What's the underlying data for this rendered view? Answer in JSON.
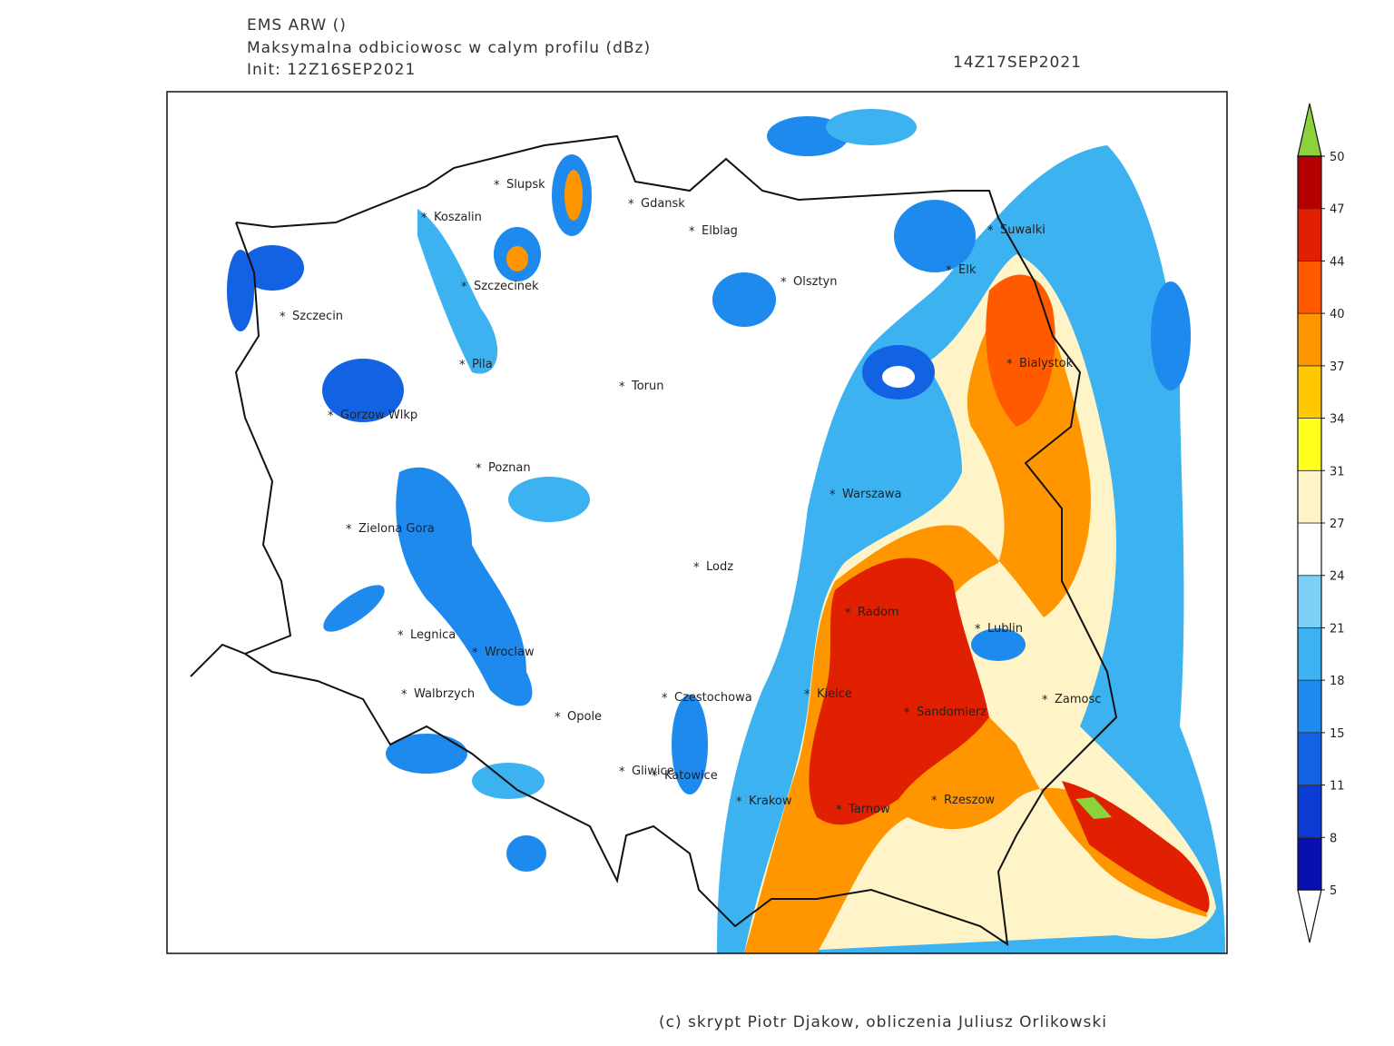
{
  "header": {
    "model": "EMS ARW ()",
    "field": "Maksymalna odbiciowosc w calym profilu (dBz)",
    "init": "Init: 12Z16SEP2021",
    "valid": "14Z17SEP2021"
  },
  "cities": [
    "Slupsk",
    "Koszalin",
    "Gdansk",
    "Elblag",
    "Suwalki",
    "Elk",
    "Olsztyn",
    "Szczecinek",
    "Szczecin",
    "Bialystok",
    "Pila",
    "Torun",
    "Gorzow Wlkp",
    "Poznan",
    "Warszawa",
    "Zielona Gora",
    "Lodz",
    "Radom",
    "Lublin",
    "Legnica",
    "Wroclaw",
    "Walbrzych",
    "Czestochowa",
    "Kielce",
    "Zamosc",
    "Opole",
    "Sandomierz",
    "Gliwice",
    "Katowice",
    "Krakow",
    "Tarnow",
    "Rzeszow"
  ],
  "colorbar": {
    "ticks": [
      5,
      8,
      11,
      15,
      18,
      21,
      24,
      27,
      31,
      34,
      37,
      40,
      44,
      47,
      50
    ],
    "colors": [
      "#0a10b0",
      "#0c3cd4",
      "#1462e4",
      "#1e8aee",
      "#3cb2f0",
      "#7ccff5",
      "#ffffff",
      "#fff4c8",
      "#ffff1e",
      "#ffc800",
      "#ff9600",
      "#ff5a00",
      "#e02000",
      "#b40000"
    ],
    "under_color": "#ffffff",
    "over_color": "#8cd23c"
  },
  "footer": "(c) skrypt Piotr Djakow, obliczenia Juliusz Orlikowski"
}
